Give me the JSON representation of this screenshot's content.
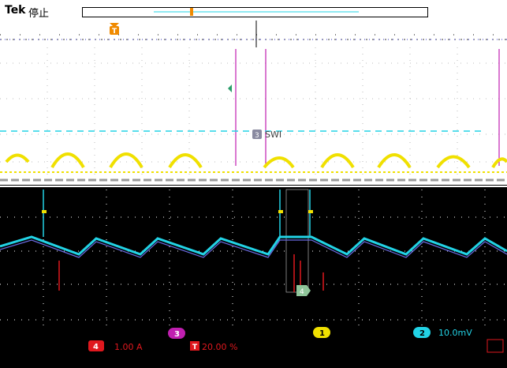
{
  "header": {
    "brand": "Tek",
    "run_state": "停止",
    "trigger_marker": "T"
  },
  "traces": {
    "ch3_label": "3",
    "ch3_name": "SWI",
    "ch4_label": "4",
    "ch1_label": "1",
    "ch2_label": "2"
  },
  "status_bar": {
    "ch3_badge": "3",
    "ch4_badge": "4",
    "ch4_scale": "1.00 A",
    "trigger_badge": "T",
    "trigger_position": "20.00 %",
    "ch1_badge": "1",
    "ch2_badge": "2",
    "ch2_scale": "10.0mV"
  },
  "colors": {
    "ch1": "#f0e000",
    "ch2": "#22d3e6",
    "ch3": "#c01fb0",
    "ch4": "#e0181e",
    "trigger": "#f08a00"
  }
}
